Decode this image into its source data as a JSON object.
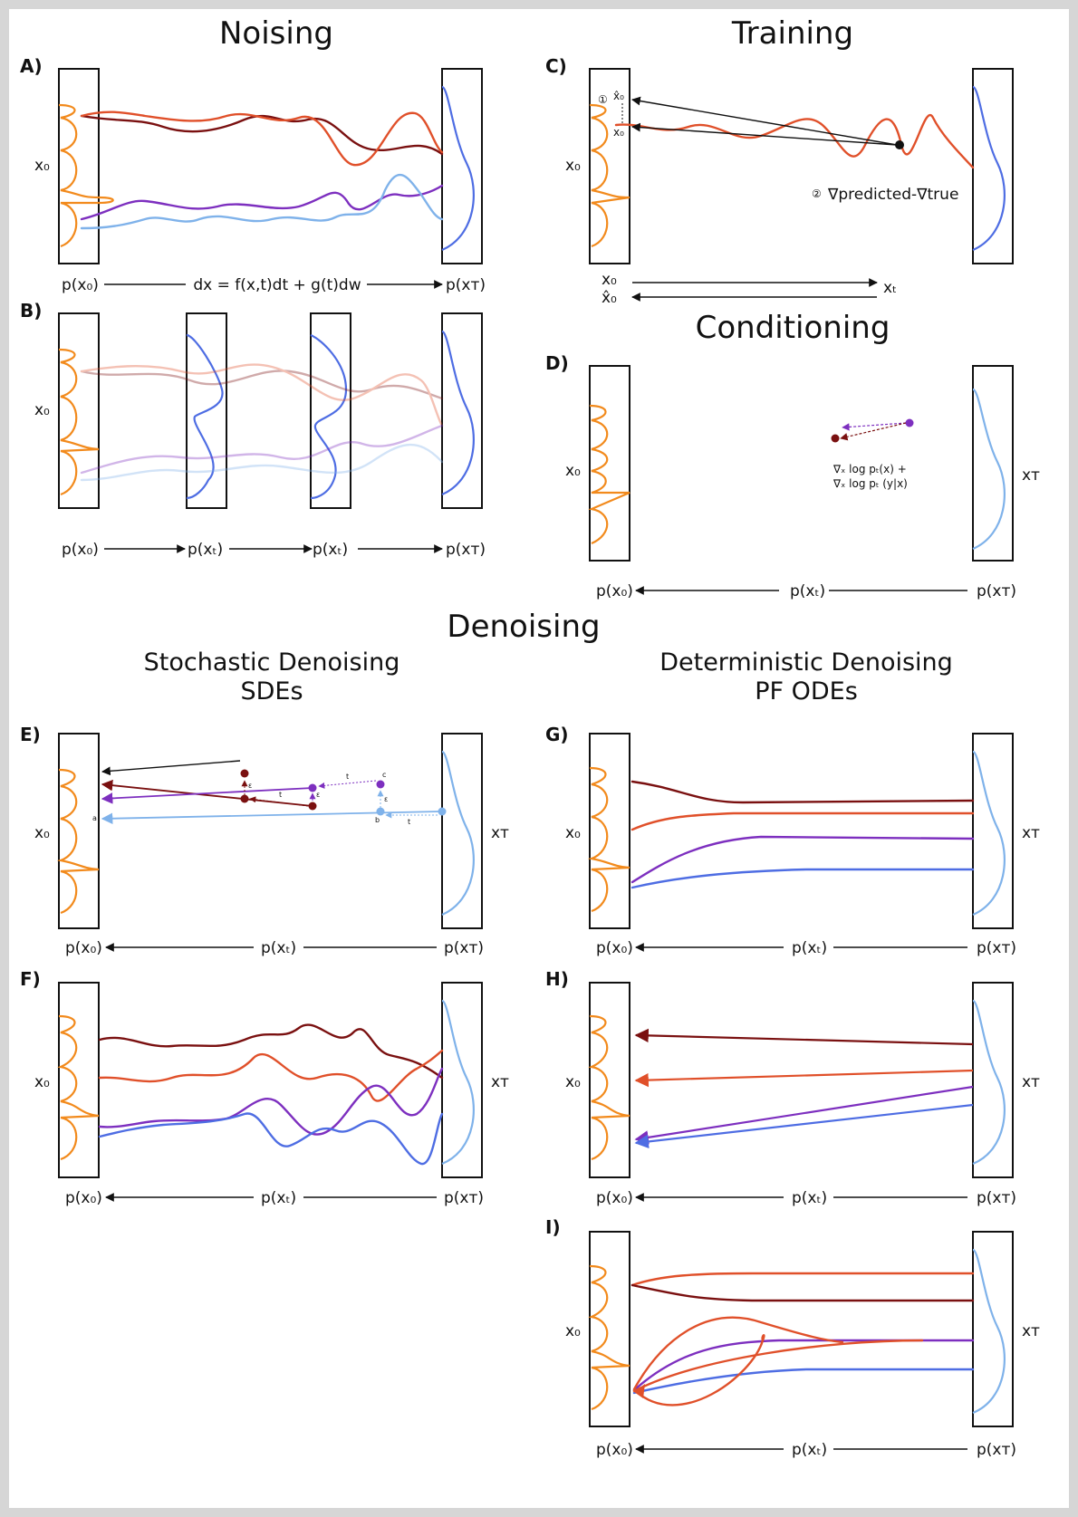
{
  "colors": {
    "dark_red": "#7a1010",
    "red": "#e0502a",
    "purple": "#7d2fbf",
    "light_blue": "#7fb2ea",
    "blue": "#4e6de3",
    "orange": "#f28a1c"
  },
  "titles": {
    "noising": "Noising",
    "training": "Training",
    "conditioning": "Conditioning",
    "denoising": "Denoising",
    "stochastic_line1": "Stochastic Denoising",
    "stochastic_line2": "SDEs",
    "deterministic_line1": "Deterministic Denoising",
    "deterministic_line2": "PF ODEs"
  },
  "panels": {
    "a": "A)",
    "b": "B)",
    "c": "C)",
    "d": "D)",
    "e": "E)",
    "f": "F)",
    "g": "G)",
    "h": "H)",
    "i": "I)"
  },
  "labels": {
    "x0": "x₀",
    "xT": "xᴛ",
    "xt": "xₜ",
    "x0_hat": "x̂₀",
    "p_x0": "p(x₀)",
    "p_xt": "p(xₜ)",
    "p_xT": "p(xᴛ)"
  },
  "noising": {
    "sde_equation": "dx = f(x,t)dt + g(t)dw"
  },
  "training": {
    "step1": "①",
    "step2": "②",
    "gradient_diff": "∇predicted-∇true"
  },
  "conditioning": {
    "guidance_line1": "∇ₓ log pₜ(x) +",
    "guidance_line2": "∇ₓ log pₜ (y|x)"
  },
  "stochastic": {
    "point_a": "a",
    "point_b": "b",
    "point_c": "c",
    "step_t": "t",
    "noise_eps": "ε"
  }
}
